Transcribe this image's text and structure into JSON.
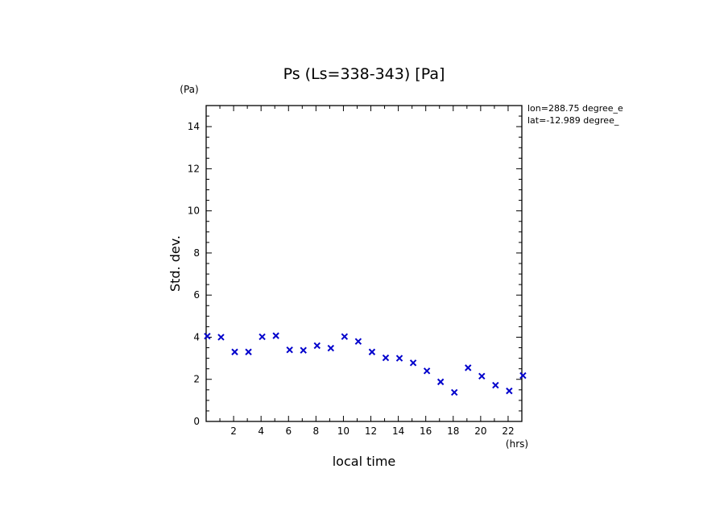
{
  "chart_data": {
    "type": "scatter",
    "title": "Ps (Ls=338-343) [Pa]",
    "xlabel": "local time",
    "ylabel": "Std. dev.",
    "x_unit": "(hrs)",
    "y_unit": "(Pa)",
    "xlim": [
      0,
      23
    ],
    "ylim": [
      0,
      15
    ],
    "x_tick_labels": [
      "2",
      "4",
      "6",
      "8",
      "10",
      "12",
      "14",
      "16",
      "18",
      "20",
      "22"
    ],
    "y_tick_labels": [
      "0",
      "2",
      "4",
      "6",
      "8",
      "10",
      "12",
      "14"
    ],
    "annotations": [
      "lon=288.75 degree_e",
      "lat=-12.989 degree_"
    ],
    "marker_color": "#0000cc",
    "series": [
      {
        "x": [
          0.083,
          1.083,
          2.083,
          3.083,
          4.083,
          5.083,
          6.083,
          7.083,
          8.083,
          9.083,
          10.083,
          11.083,
          12.083,
          13.083,
          14.083,
          15.083,
          16.083,
          17.083,
          18.083,
          19.083,
          20.083,
          21.083,
          22.083,
          23.083
        ],
        "y": [
          4.05,
          4.0,
          3.3,
          3.3,
          4.02,
          4.07,
          3.4,
          3.38,
          3.6,
          3.48,
          4.03,
          3.8,
          3.3,
          3.02,
          3.0,
          2.78,
          2.4,
          1.88,
          1.38,
          2.55,
          2.15,
          1.72,
          1.45,
          2.18
        ]
      }
    ]
  }
}
